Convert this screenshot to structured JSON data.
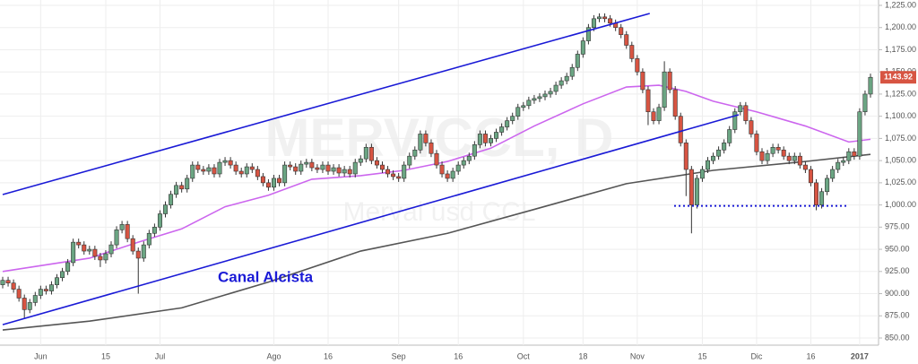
{
  "chart_data": {
    "type": "candlestick",
    "watermark": "MERV/CCL, D",
    "watermark_subtitle": "Merval usd CCL",
    "annotation": "Canal Alcista",
    "categories": [
      null,
      null,
      null,
      null,
      null,
      null,
      null,
      "Jun",
      null,
      null,
      null,
      null,
      null,
      null,
      null,
      null,
      null,
      null,
      null,
      "15",
      null,
      null,
      null,
      null,
      null,
      null,
      null,
      null,
      null,
      "Jul",
      null,
      null,
      null,
      null,
      null,
      null,
      null,
      null,
      null,
      null,
      null,
      null,
      null,
      null,
      null,
      null,
      null,
      null,
      null,
      null,
      "Ago",
      null,
      null,
      null,
      null,
      null,
      null,
      null,
      null,
      null,
      "16",
      null,
      null,
      null,
      null,
      null,
      null,
      null,
      null,
      null,
      null,
      null,
      null,
      "Sep",
      null,
      null,
      null,
      null,
      null,
      null,
      null,
      null,
      null,
      null,
      "16",
      null,
      null,
      null,
      null,
      null,
      null,
      null,
      null,
      null,
      null,
      null,
      "Oct",
      null,
      null,
      null,
      null,
      null,
      null,
      null,
      null,
      null,
      null,
      "18",
      null,
      null,
      null,
      null,
      null,
      null,
      null,
      null,
      null,
      "Nov",
      null,
      null,
      null,
      null,
      null,
      null,
      null,
      null,
      null,
      null,
      null,
      "15",
      null,
      null,
      null,
      null,
      null,
      null,
      null,
      null,
      null,
      "Dic",
      null,
      null,
      null,
      null,
      null,
      null,
      null,
      null,
      null,
      "16",
      null,
      null,
      null,
      null,
      null,
      null,
      null,
      null,
      "2017",
      null,
      null
    ],
    "series": [
      {
        "up_color": "#6ba583",
        "down_color": "#d75442",
        "open": [
          910,
          915,
          912,
          905,
          895,
          882,
          890,
          898,
          905,
          903,
          910,
          918,
          925,
          935,
          958,
          955,
          948,
          950,
          942,
          938,
          945,
          955,
          972,
          978,
          962,
          948,
          940,
          955,
          968,
          975,
          990,
          1000,
          1012,
          1022,
          1018,
          1030,
          1045,
          1040,
          1038,
          1042,
          1035,
          1048,
          1050,
          1045,
          1038,
          1035,
          1043,
          1040,
          1032,
          1025,
          1020,
          1030,
          1025,
          1045,
          1043,
          1038,
          1046,
          1048,
          1042,
          1040,
          1045,
          1038,
          1042,
          1036,
          1040,
          1035,
          1048,
          1052,
          1065,
          1050,
          1045,
          1040,
          1035,
          1032,
          1030,
          1045,
          1055,
          1062,
          1080,
          1070,
          1058,
          1045,
          1035,
          1030,
          1038,
          1045,
          1050,
          1055,
          1068,
          1080,
          1070,
          1075,
          1082,
          1088,
          1095,
          1100,
          1110,
          1112,
          1118,
          1120,
          1122,
          1125,
          1128,
          1135,
          1140,
          1145,
          1155,
          1170,
          1185,
          1200,
          1210,
          1212,
          1210,
          1205,
          1200,
          1192,
          1180,
          1165,
          1150,
          1130,
          1105,
          1095,
          1110,
          1150,
          1130,
          1100,
          1070,
          1040,
          1000,
          1030,
          1040,
          1050,
          1055,
          1062,
          1070,
          1085,
          1105,
          1112,
          1095,
          1080,
          1060,
          1050,
          1058,
          1065,
          1062,
          1055,
          1050,
          1055,
          1045,
          1040,
          1025,
          1000,
          1015,
          1030,
          1040,
          1048,
          1050,
          1060,
          1055,
          1105,
          1125
        ],
        "high": [
          919,
          919,
          916,
          909,
          899,
          894,
          902,
          909,
          909,
          914,
          922,
          929,
          939,
          962,
          962,
          959,
          954,
          954,
          946,
          949,
          959,
          976,
          982,
          982,
          966,
          952,
          959,
          972,
          979,
          994,
          1004,
          1016,
          1026,
          1026,
          1034,
          1049,
          1049,
          1044,
          1046,
          1046,
          1052,
          1054,
          1054,
          1049,
          1042,
          1047,
          1047,
          1044,
          1036,
          1029,
          1034,
          1034,
          1049,
          1049,
          1047,
          1050,
          1052,
          1052,
          1046,
          1049,
          1049,
          1046,
          1046,
          1044,
          1044,
          1052,
          1056,
          1069,
          1069,
          1054,
          1049,
          1044,
          1039,
          1036,
          1049,
          1059,
          1066,
          1084,
          1084,
          1074,
          1062,
          1049,
          1039,
          1042,
          1049,
          1054,
          1059,
          1072,
          1084,
          1084,
          1079,
          1086,
          1092,
          1099,
          1104,
          1114,
          1116,
          1122,
          1124,
          1126,
          1129,
          1132,
          1139,
          1144,
          1149,
          1159,
          1174,
          1189,
          1204,
          1214,
          1216,
          1216,
          1214,
          1209,
          1204,
          1196,
          1184,
          1169,
          1154,
          1134,
          1109,
          1114,
          1162,
          1154,
          1134,
          1104,
          1074,
          1044,
          1034,
          1044,
          1054,
          1059,
          1066,
          1074,
          1089,
          1109,
          1116,
          1116,
          1099,
          1084,
          1064,
          1062,
          1069,
          1069,
          1066,
          1059,
          1059,
          1059,
          1049,
          1044,
          1029,
          1019,
          1034,
          1044,
          1052,
          1054,
          1064,
          1064,
          1109,
          1129,
          1148
        ],
        "low": [
          906,
          908,
          901,
          891,
          872,
          878,
          886,
          894,
          899,
          899,
          906,
          914,
          921,
          931,
          951,
          944,
          944,
          938,
          930,
          934,
          941,
          951,
          968,
          958,
          944,
          900,
          936,
          951,
          964,
          971,
          986,
          996,
          1008,
          1014,
          1014,
          1026,
          1036,
          1034,
          1034,
          1031,
          1031,
          1044,
          1041,
          1034,
          1031,
          1031,
          1036,
          1028,
          1021,
          1016,
          1016,
          1021,
          1021,
          1039,
          1034,
          1034,
          1042,
          1038,
          1036,
          1036,
          1034,
          1034,
          1032,
          1032,
          1031,
          1031,
          1044,
          1048,
          1046,
          1041,
          1036,
          1031,
          1028,
          1026,
          1026,
          1041,
          1051,
          1058,
          1066,
          1054,
          1041,
          1031,
          1026,
          1026,
          1034,
          1041,
          1046,
          1051,
          1064,
          1066,
          1066,
          1071,
          1078,
          1084,
          1091,
          1096,
          1106,
          1108,
          1114,
          1116,
          1118,
          1121,
          1124,
          1131,
          1136,
          1141,
          1151,
          1166,
          1181,
          1196,
          1206,
          1206,
          1201,
          1196,
          1188,
          1176,
          1161,
          1146,
          1126,
          1090,
          1091,
          1091,
          1106,
          1126,
          1096,
          1066,
          1010,
          968,
          996,
          1026,
          1036,
          1046,
          1051,
          1058,
          1066,
          1081,
          1101,
          1091,
          1076,
          1056,
          1046,
          1046,
          1054,
          1058,
          1051,
          1046,
          1046,
          1041,
          1036,
          1021,
          994,
          996,
          1011,
          1026,
          1036,
          1044,
          1046,
          1051,
          1051,
          1101,
          1121
        ],
        "close": [
          915,
          912,
          905,
          895,
          882,
          890,
          898,
          905,
          903,
          910,
          918,
          925,
          935,
          958,
          955,
          948,
          950,
          942,
          938,
          945,
          955,
          972,
          978,
          962,
          948,
          940,
          955,
          968,
          975,
          990,
          1000,
          1012,
          1022,
          1018,
          1030,
          1045,
          1040,
          1038,
          1042,
          1035,
          1048,
          1050,
          1045,
          1038,
          1035,
          1043,
          1040,
          1032,
          1025,
          1020,
          1030,
          1025,
          1045,
          1043,
          1038,
          1046,
          1048,
          1042,
          1040,
          1045,
          1038,
          1042,
          1036,
          1040,
          1035,
          1048,
          1052,
          1065,
          1050,
          1045,
          1040,
          1035,
          1032,
          1030,
          1045,
          1055,
          1062,
          1080,
          1070,
          1058,
          1045,
          1035,
          1030,
          1038,
          1045,
          1050,
          1055,
          1068,
          1080,
          1070,
          1075,
          1082,
          1088,
          1095,
          1100,
          1110,
          1112,
          1118,
          1120,
          1122,
          1125,
          1128,
          1135,
          1140,
          1145,
          1155,
          1170,
          1185,
          1200,
          1210,
          1212,
          1210,
          1205,
          1200,
          1192,
          1180,
          1165,
          1150,
          1130,
          1105,
          1095,
          1110,
          1150,
          1130,
          1100,
          1070,
          1040,
          1000,
          1030,
          1040,
          1050,
          1055,
          1062,
          1070,
          1085,
          1105,
          1112,
          1095,
          1080,
          1060,
          1050,
          1058,
          1065,
          1062,
          1055,
          1050,
          1055,
          1045,
          1040,
          1025,
          1000,
          1015,
          1030,
          1040,
          1048,
          1050,
          1060,
          1055,
          1105,
          1125,
          1143.92
        ]
      }
    ],
    "lines": [
      {
        "color": "#cc66ee",
        "x": [
          0,
          16,
          25,
          33,
          41,
          49,
          57,
          66,
          74,
          82,
          90,
          98,
          107,
          115,
          121,
          126,
          131,
          139,
          148,
          156,
          160
        ],
        "values": [
          925,
          940,
          958,
          973,
          998,
          1011,
          1029,
          1033,
          1039,
          1049,
          1064,
          1089,
          1114,
          1133,
          1135,
          1128,
          1117,
          1105,
          1089,
          1071,
          1074
        ]
      },
      {
        "color": "#555555",
        "x": [
          0,
          16,
          33,
          49,
          66,
          82,
          98,
          115,
          131,
          148,
          160
        ],
        "values": [
          859,
          869,
          884,
          913,
          948,
          968,
          995,
          1024,
          1039,
          1049,
          1057
        ]
      }
    ],
    "trendlines": [
      {
        "color": "#1a1ad6",
        "style": "solid",
        "x": [
          0,
          119.3
        ],
        "values": [
          1011.7,
          1215.9
        ]
      },
      {
        "color": "#1a1ad6",
        "style": "solid",
        "x": [
          0,
          135.7
        ],
        "values": [
          865,
          1101.7
        ]
      },
      {
        "color": "#1a1ad6",
        "style": "dotted",
        "x": [
          123.8,
          155.7
        ],
        "values": [
          999,
          999
        ]
      }
    ],
    "last_price_color": "#d75442",
    "ylim": [
      850,
      1225
    ],
    "yticks": [
      {
        "value": 850,
        "label": "850.00"
      },
      {
        "value": 875,
        "label": "875.00"
      },
      {
        "value": 900,
        "label": "900.00"
      },
      {
        "value": 925,
        "label": "925.00"
      },
      {
        "value": 950,
        "label": "950.00"
      },
      {
        "value": 975,
        "label": "975.00"
      },
      {
        "value": 1000,
        "label": "1,000.00"
      },
      {
        "value": 1025,
        "label": "1,025.00"
      },
      {
        "value": 1050,
        "label": "1,050.00"
      },
      {
        "value": 1075,
        "label": "1,075.00"
      },
      {
        "value": 1100,
        "label": "1,100.00"
      },
      {
        "value": 1125,
        "label": "1,125.00"
      },
      {
        "value": 1150,
        "label": "1,150.00"
      },
      {
        "value": 1175,
        "label": "1,175.00"
      },
      {
        "value": 1200,
        "label": "1,200.00"
      },
      {
        "value": 1225,
        "label": "1,225.00"
      }
    ],
    "grid": true
  }
}
